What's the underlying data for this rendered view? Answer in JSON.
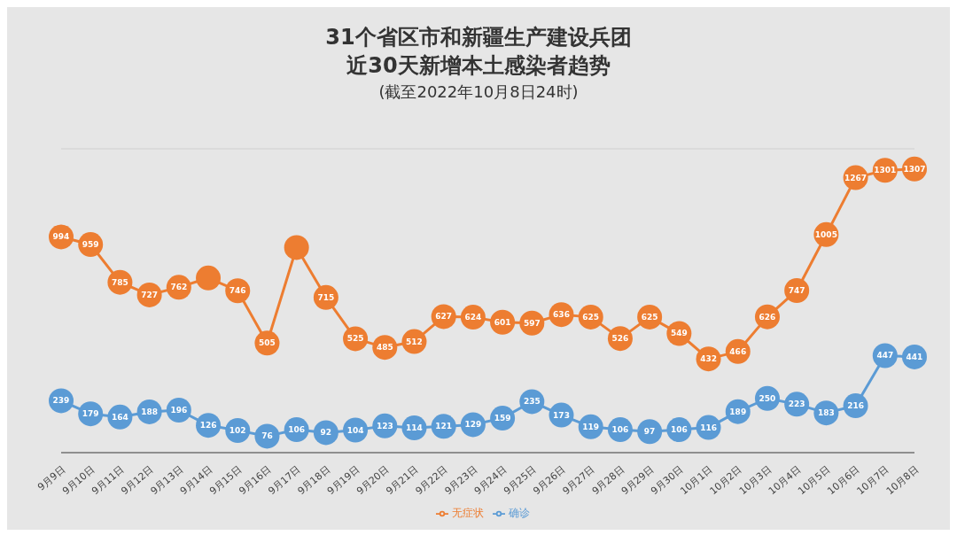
{
  "chart_data": {
    "type": "line",
    "title": "31个省区市和新疆生产建设兵团近30天新增本土感染者趋势",
    "subtitle": "(截至2022年10月8日24时)",
    "categories": [
      "9月9日",
      "9月10日",
      "9月11日",
      "9月12日",
      "9月13日",
      "9月14日",
      "9月15日",
      "9月16日",
      "9月17日",
      "9月18日",
      "9月19日",
      "9月20日",
      "9月21日",
      "9月22日",
      "9月23日",
      "9月24日",
      "9月25日",
      "9月26日",
      "9月27日",
      "9月28日",
      "9月29日",
      "9月30日",
      "10月1日",
      "10月2日",
      "10月3日",
      "10月4日",
      "10月5日",
      "10月6日",
      "10月7日",
      "10月8日"
    ],
    "series": [
      {
        "name": "确诊",
        "color": "#5b9bd5",
        "values": [
          239,
          179,
          164,
          188,
          196,
          126,
          102,
          76,
          106,
          92,
          104,
          123,
          114,
          121,
          129,
          159,
          235,
          173,
          119,
          106,
          97,
          106,
          116,
          189,
          250,
          223,
          183,
          216,
          447,
          441
        ]
      },
      {
        "name": "无症状",
        "color": "#ed7d31",
        "values": [
          994,
          959,
          785,
          727,
          762,
          805,
          746,
          505,
          945,
          715,
          525,
          485,
          512,
          627,
          624,
          601,
          597,
          636,
          625,
          526,
          625,
          549,
          432,
          466,
          626,
          747,
          1005,
          1267,
          1301,
          1307
        ],
        "value_labels": [
          "994",
          "959",
          "785",
          "727",
          "762",
          null,
          "746",
          "505",
          null,
          "715",
          "525",
          "485",
          "512",
          "627",
          "624",
          "601",
          "597",
          "636",
          "625",
          "526",
          "625",
          "549",
          "432",
          "466",
          "626",
          "747",
          "1005",
          "1267",
          "1301",
          "1307"
        ]
      }
    ],
    "ylim": [
      0,
      1400
    ],
    "tick_labels": "x",
    "grid": "y",
    "legend": "bottom",
    "marker": "circle",
    "line_style": "solid",
    "data_labels": true
  }
}
